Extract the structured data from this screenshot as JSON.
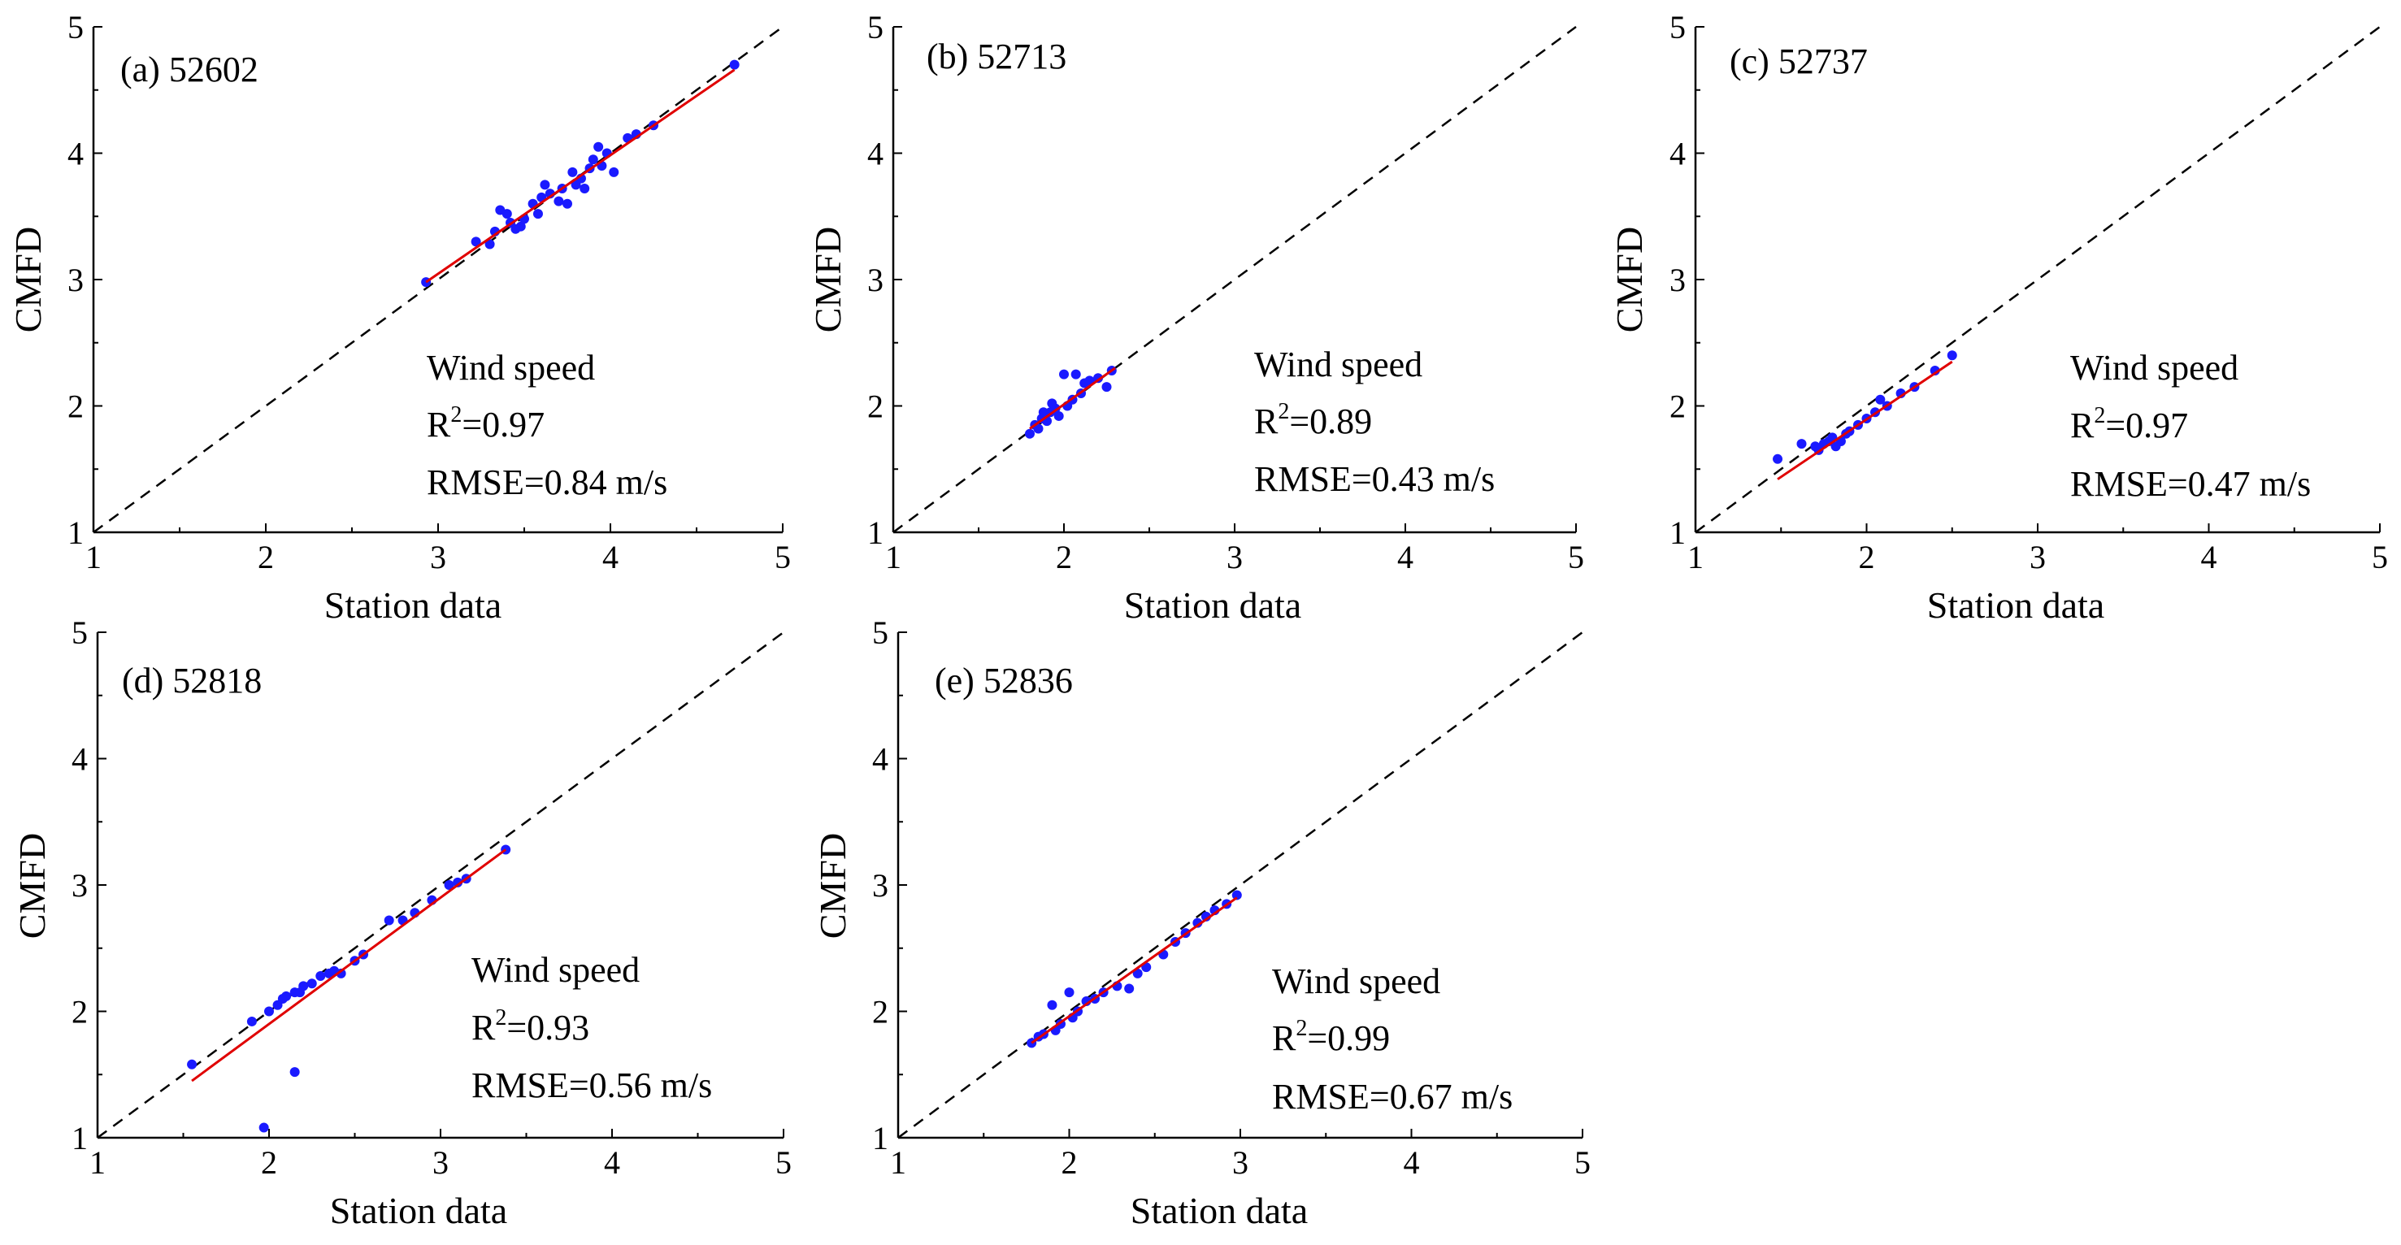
{
  "chart_data": [
    {
      "type": "scatter",
      "panel_label": "(a) 52602",
      "xlabel": "Station data",
      "ylabel": "CMFD",
      "xlim": [
        1,
        5
      ],
      "ylim": [
        1,
        5
      ],
      "xticks": [
        "1",
        "2",
        "3",
        "4",
        "5"
      ],
      "yticks": [
        "1",
        "2",
        "3",
        "4",
        "5"
      ],
      "variable": "Wind speed",
      "r2_label": "R",
      "r2_sup": "2",
      "r2_value": "=0.97",
      "rmse": "RMSE=0.84 m/s",
      "fit": {
        "x": [
          2.93,
          4.72
        ],
        "y": [
          2.98,
          4.66
        ]
      },
      "points": [
        [
          2.93,
          2.98
        ],
        [
          3.22,
          3.3
        ],
        [
          3.3,
          3.28
        ],
        [
          3.33,
          3.38
        ],
        [
          3.36,
          3.55
        ],
        [
          3.4,
          3.52
        ],
        [
          3.42,
          3.45
        ],
        [
          3.45,
          3.4
        ],
        [
          3.48,
          3.42
        ],
        [
          3.5,
          3.48
        ],
        [
          3.55,
          3.6
        ],
        [
          3.58,
          3.52
        ],
        [
          3.6,
          3.65
        ],
        [
          3.62,
          3.75
        ],
        [
          3.65,
          3.68
        ],
        [
          3.7,
          3.62
        ],
        [
          3.72,
          3.72
        ],
        [
          3.75,
          3.6
        ],
        [
          3.78,
          3.85
        ],
        [
          3.8,
          3.75
        ],
        [
          3.83,
          3.8
        ],
        [
          3.85,
          3.72
        ],
        [
          3.88,
          3.88
        ],
        [
          3.9,
          3.95
        ],
        [
          3.93,
          4.05
        ],
        [
          3.95,
          3.9
        ],
        [
          3.98,
          4.0
        ],
        [
          4.02,
          3.85
        ],
        [
          4.1,
          4.12
        ],
        [
          4.15,
          4.15
        ],
        [
          4.25,
          4.22
        ],
        [
          4.72,
          4.7
        ]
      ]
    },
    {
      "type": "scatter",
      "panel_label": "(b) 52713",
      "xlabel": "Station data",
      "ylabel": "CMFD",
      "xlim": [
        1,
        5
      ],
      "ylim": [
        1,
        5
      ],
      "xticks": [
        "1",
        "2",
        "3",
        "4",
        "5"
      ],
      "yticks": [
        "1",
        "2",
        "3",
        "4",
        "5"
      ],
      "variable": "Wind speed",
      "r2_label": "R",
      "r2_sup": "2",
      "r2_value": "=0.89",
      "rmse": "RMSE=0.43 m/s",
      "fit": {
        "x": [
          1.8,
          2.3
        ],
        "y": [
          1.82,
          2.3
        ]
      },
      "points": [
        [
          1.8,
          1.78
        ],
        [
          1.83,
          1.85
        ],
        [
          1.85,
          1.82
        ],
        [
          1.87,
          1.9
        ],
        [
          1.9,
          1.88
        ],
        [
          1.92,
          1.95
        ],
        [
          1.95,
          1.98
        ],
        [
          1.97,
          1.92
        ],
        [
          2.0,
          2.25
        ],
        [
          2.02,
          2.0
        ],
        [
          2.05,
          2.05
        ],
        [
          2.07,
          2.25
        ],
        [
          2.1,
          2.1
        ],
        [
          2.12,
          2.18
        ],
        [
          2.15,
          2.2
        ],
        [
          2.2,
          2.22
        ],
        [
          2.25,
          2.15
        ],
        [
          2.28,
          2.28
        ],
        [
          1.88,
          1.95
        ],
        [
          1.93,
          2.02
        ]
      ]
    },
    {
      "type": "scatter",
      "panel_label": "(c) 52737",
      "xlabel": "Station data",
      "ylabel": "CMFD",
      "xlim": [
        1,
        5
      ],
      "ylim": [
        1,
        5
      ],
      "xticks": [
        "1",
        "2",
        "3",
        "4",
        "5"
      ],
      "yticks": [
        "1",
        "2",
        "3",
        "4",
        "5"
      ],
      "variable": "Wind speed",
      "r2_label": "R",
      "r2_sup": "2",
      "r2_value": "=0.97",
      "rmse": "RMSE=0.47 m/s",
      "fit": {
        "x": [
          1.48,
          2.5
        ],
        "y": [
          1.42,
          2.35
        ]
      },
      "points": [
        [
          1.48,
          1.58
        ],
        [
          1.62,
          1.7
        ],
        [
          1.7,
          1.68
        ],
        [
          1.75,
          1.7
        ],
        [
          1.78,
          1.72
        ],
        [
          1.8,
          1.75
        ],
        [
          1.85,
          1.72
        ],
        [
          1.88,
          1.78
        ],
        [
          1.9,
          1.8
        ],
        [
          1.95,
          1.85
        ],
        [
          2.0,
          1.9
        ],
        [
          2.05,
          1.95
        ],
        [
          2.08,
          2.05
        ],
        [
          2.12,
          2.0
        ],
        [
          2.2,
          2.1
        ],
        [
          2.28,
          2.15
        ],
        [
          2.4,
          2.28
        ],
        [
          2.5,
          2.4
        ],
        [
          1.72,
          1.65
        ],
        [
          1.82,
          1.68
        ]
      ]
    },
    {
      "type": "scatter",
      "panel_label": "(d) 52818",
      "xlabel": "Station data",
      "ylabel": "CMFD",
      "xlim": [
        1,
        5
      ],
      "ylim": [
        1,
        5
      ],
      "xticks": [
        "1",
        "2",
        "3",
        "4",
        "5"
      ],
      "yticks": [
        "1",
        "2",
        "3",
        "4",
        "5"
      ],
      "variable": "Wind speed",
      "r2_label": "R",
      "r2_sup": "2",
      "r2_value": "=0.93",
      "rmse": "RMSE=0.56 m/s",
      "fit": {
        "x": [
          1.55,
          3.38
        ],
        "y": [
          1.45,
          3.28
        ]
      },
      "points": [
        [
          1.55,
          1.58
        ],
        [
          1.9,
          1.92
        ],
        [
          1.97,
          1.08
        ],
        [
          2.0,
          2.0
        ],
        [
          2.05,
          2.05
        ],
        [
          2.08,
          2.1
        ],
        [
          2.1,
          2.12
        ],
        [
          2.15,
          1.52
        ],
        [
          2.15,
          2.15
        ],
        [
          2.18,
          2.15
        ],
        [
          2.2,
          2.2
        ],
        [
          2.25,
          2.22
        ],
        [
          2.3,
          2.28
        ],
        [
          2.35,
          2.3
        ],
        [
          2.38,
          2.32
        ],
        [
          2.42,
          2.3
        ],
        [
          2.5,
          2.4
        ],
        [
          2.55,
          2.45
        ],
        [
          2.7,
          2.72
        ],
        [
          2.78,
          2.72
        ],
        [
          2.85,
          2.78
        ],
        [
          2.95,
          2.88
        ],
        [
          3.05,
          3.0
        ],
        [
          3.1,
          3.02
        ],
        [
          3.15,
          3.05
        ],
        [
          3.38,
          3.28
        ]
      ]
    },
    {
      "type": "scatter",
      "panel_label": "(e) 52836",
      "xlabel": "Station data",
      "ylabel": "CMFD",
      "xlim": [
        1,
        5
      ],
      "ylim": [
        1,
        5
      ],
      "xticks": [
        "1",
        "2",
        "3",
        "4",
        "5"
      ],
      "yticks": [
        "1",
        "2",
        "3",
        "4",
        "5"
      ],
      "variable": "Wind speed",
      "r2_label": "R",
      "r2_sup": "2",
      "r2_value": "=0.99",
      "rmse": "RMSE=0.67 m/s",
      "fit": {
        "x": [
          1.78,
          2.98
        ],
        "y": [
          1.75,
          2.9
        ]
      },
      "points": [
        [
          1.78,
          1.75
        ],
        [
          1.82,
          1.8
        ],
        [
          1.85,
          1.82
        ],
        [
          1.9,
          2.05
        ],
        [
          1.92,
          1.85
        ],
        [
          1.95,
          1.9
        ],
        [
          2.0,
          2.15
        ],
        [
          2.02,
          1.95
        ],
        [
          2.05,
          2.0
        ],
        [
          2.1,
          2.08
        ],
        [
          2.15,
          2.1
        ],
        [
          2.2,
          2.15
        ],
        [
          2.28,
          2.2
        ],
        [
          2.35,
          2.18
        ],
        [
          2.4,
          2.3
        ],
        [
          2.45,
          2.35
        ],
        [
          2.55,
          2.45
        ],
        [
          2.62,
          2.55
        ],
        [
          2.68,
          2.62
        ],
        [
          2.75,
          2.7
        ],
        [
          2.8,
          2.75
        ],
        [
          2.85,
          2.8
        ],
        [
          2.92,
          2.85
        ],
        [
          2.98,
          2.92
        ]
      ]
    }
  ]
}
